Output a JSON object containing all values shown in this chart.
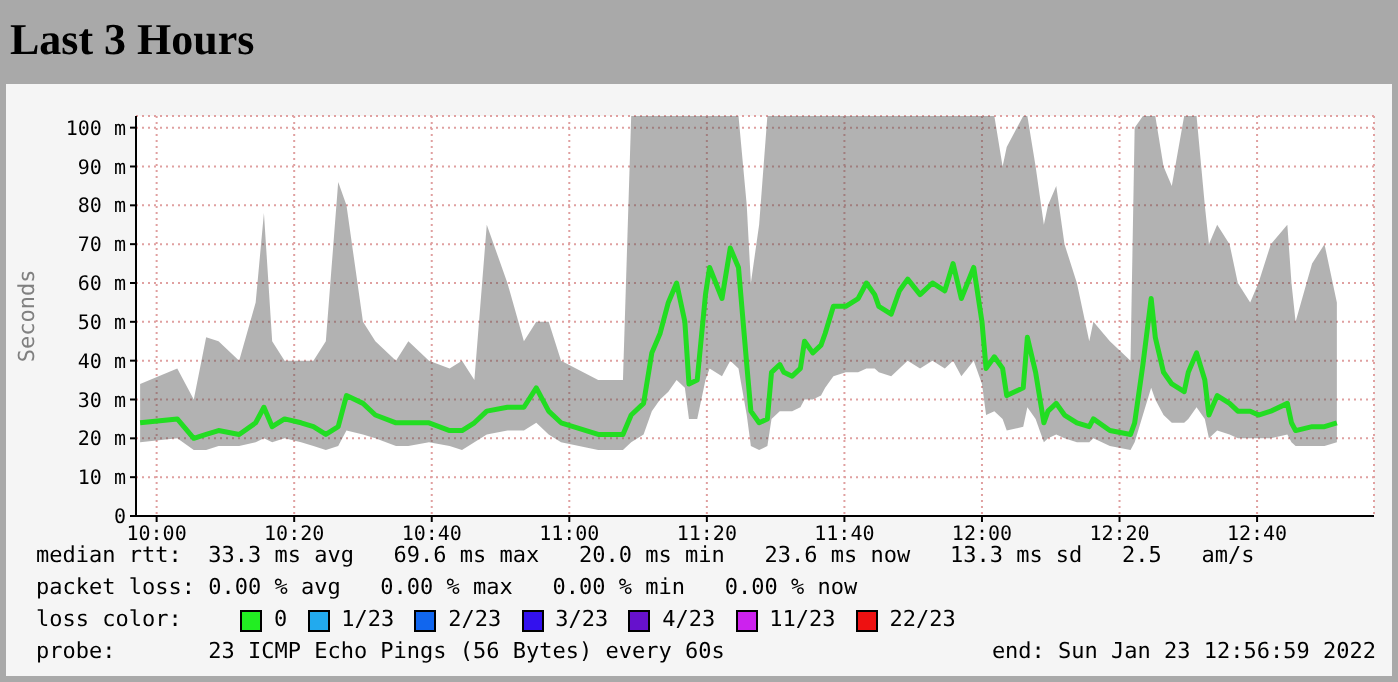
{
  "chart_data": {
    "type": "line",
    "title": "Last 3 Hours",
    "ylabel": "Seconds",
    "x": [
      9.96,
      10.05,
      10.09,
      10.12,
      10.15,
      10.2,
      10.24,
      10.26,
      10.28,
      10.31,
      10.35,
      10.38,
      10.41,
      10.44,
      10.46,
      10.5,
      10.53,
      10.58,
      10.61,
      10.66,
      10.71,
      10.74,
      10.77,
      10.8,
      10.85,
      10.89,
      10.92,
      10.95,
      10.98,
      11.07,
      11.13,
      11.15,
      11.18,
      11.2,
      11.22,
      11.24,
      11.26,
      11.28,
      11.29,
      11.31,
      11.33,
      11.34,
      11.37,
      11.39,
      11.41,
      11.43,
      11.44,
      11.46,
      11.48,
      11.49,
      11.51,
      11.52,
      11.54,
      11.56,
      11.57,
      11.59,
      11.61,
      11.62,
      11.64,
      11.67,
      11.7,
      11.72,
      11.74,
      11.75,
      11.78,
      11.8,
      11.82,
      11.85,
      11.88,
      11.91,
      11.93,
      11.95,
      11.98,
      12.0,
      12.01,
      12.03,
      12.05,
      12.06,
      12.1,
      12.11,
      12.13,
      12.15,
      12.16,
      12.18,
      12.2,
      12.23,
      12.26,
      12.27,
      12.31,
      12.36,
      12.37,
      12.39,
      12.41,
      12.42,
      12.44,
      12.46,
      12.49,
      12.5,
      12.52,
      12.54,
      12.55,
      12.57,
      12.6,
      12.62,
      12.65,
      12.67,
      12.7,
      12.74,
      12.75,
      12.76,
      12.8,
      12.83,
      12.86
    ],
    "series": [
      {
        "color": "#22dd22",
        "values": [
          24,
          25,
          20,
          21,
          22,
          21,
          24,
          28,
          23,
          25,
          24,
          23,
          21,
          23,
          31,
          29,
          26,
          24,
          24,
          24,
          22,
          22,
          24,
          27,
          28,
          28,
          33,
          27,
          24,
          21,
          21,
          26,
          29,
          42,
          47,
          55,
          60,
          50,
          34,
          35,
          57,
          64,
          56,
          69,
          64,
          39,
          27,
          24,
          25,
          37,
          39,
          37,
          36,
          38,
          45,
          42,
          44,
          47,
          54,
          54,
          56,
          60,
          57,
          54,
          52,
          58,
          61,
          57,
          60,
          58,
          65,
          56,
          64,
          50,
          38,
          41,
          38,
          31,
          33,
          46,
          37,
          24,
          27,
          29,
          26,
          24,
          23,
          25,
          22,
          21,
          24,
          39,
          56,
          46,
          37,
          34,
          32,
          37,
          42,
          35,
          26,
          31,
          29,
          27,
          27,
          26,
          27,
          29,
          24,
          22,
          23,
          23,
          24
        ],
        "lower": [
          19,
          20,
          17,
          17,
          18,
          18,
          19,
          20,
          19,
          20,
          19,
          18,
          17,
          18,
          22,
          21,
          20,
          18,
          18,
          19,
          18,
          17,
          19,
          21,
          22,
          22,
          24,
          21,
          19,
          17,
          17,
          19,
          21,
          27,
          30,
          32,
          35,
          33,
          25,
          25,
          35,
          38,
          36,
          40,
          38,
          26,
          18,
          17,
          18,
          25,
          27,
          27,
          27,
          28,
          30,
          30,
          31,
          33,
          36,
          37,
          37,
          38,
          38,
          37,
          36,
          38,
          40,
          38,
          40,
          38,
          40,
          36,
          40,
          34,
          26,
          27,
          25,
          22,
          23,
          28,
          25,
          19,
          20,
          21,
          20,
          19,
          19,
          20,
          18,
          17,
          19,
          26,
          33,
          30,
          26,
          24,
          24,
          25,
          28,
          25,
          20,
          22,
          21,
          20,
          20,
          20,
          20,
          21,
          19,
          18,
          18,
          18,
          19
        ],
        "upper": [
          34,
          38,
          30,
          46,
          45,
          40,
          55,
          78,
          45,
          40,
          40,
          40,
          45,
          86,
          80,
          50,
          45,
          40,
          45,
          40,
          38,
          40,
          35,
          75,
          60,
          45,
          50,
          50,
          40,
          35,
          35,
          103,
          103,
          103,
          103,
          103,
          103,
          103,
          103,
          103,
          103,
          103,
          103,
          103,
          103,
          80,
          60,
          75,
          103,
          103,
          103,
          103,
          103,
          103,
          103,
          103,
          103,
          103,
          103,
          103,
          103,
          103,
          103,
          103,
          103,
          103,
          103,
          103,
          103,
          103,
          103,
          103,
          103,
          103,
          103,
          103,
          90,
          95,
          103,
          103,
          90,
          75,
          80,
          85,
          70,
          60,
          45,
          50,
          45,
          40,
          100,
          103,
          103,
          103,
          90,
          85,
          103,
          103,
          103,
          80,
          70,
          75,
          70,
          60,
          55,
          60,
          70,
          75,
          60,
          50,
          65,
          70,
          55
        ]
      }
    ],
    "xlim": [
      9.95,
      12.95
    ],
    "xticks": [
      {
        "value": 10,
        "label": "10:00"
      },
      {
        "value": 10.333333,
        "label": "10:20"
      },
      {
        "value": 10.666667,
        "label": "10:40"
      },
      {
        "value": 11,
        "label": "11:00"
      },
      {
        "value": 11.333333,
        "label": "11:20"
      },
      {
        "value": 11.666667,
        "label": "11:40"
      },
      {
        "value": 12,
        "label": "12:00"
      },
      {
        "value": 12.333333,
        "label": "12:20"
      },
      {
        "value": 12.666667,
        "label": "12:40"
      }
    ],
    "ylim": [
      0,
      103
    ],
    "yticks": [
      0,
      {
        "value": 10,
        "label": "10 m"
      },
      {
        "value": 20,
        "label": "20 m"
      },
      {
        "value": 30,
        "label": "30 m"
      },
      {
        "value": 40,
        "label": "40 m"
      },
      {
        "value": 50,
        "label": "50 m"
      },
      {
        "value": 60,
        "label": "60 m"
      },
      {
        "value": 70,
        "label": "70 m"
      },
      {
        "value": 80,
        "label": "80 m"
      },
      {
        "value": 90,
        "label": "90 m"
      },
      {
        "value": 100,
        "label": "100 m"
      }
    ],
    "grid": true,
    "annotations": [
      "median rtt:  33.3 ms avg   69.6 ms max   20.0 ms min   23.6 ms now   13.3 ms sd   2.5   am/s",
      "packet loss: 0.00 % avg   0.00 % max   0.00 % min   0.00 % now",
      "loss color:",
      "0",
      "1/23",
      "2/23",
      "3/23",
      "4/23",
      "11/23",
      "22/23",
      "probe:       23 ICMP Echo Pings (56 Bytes) every 60s",
      "end: Sun Jan 23 12:56:59 2022"
    ]
  }
}
